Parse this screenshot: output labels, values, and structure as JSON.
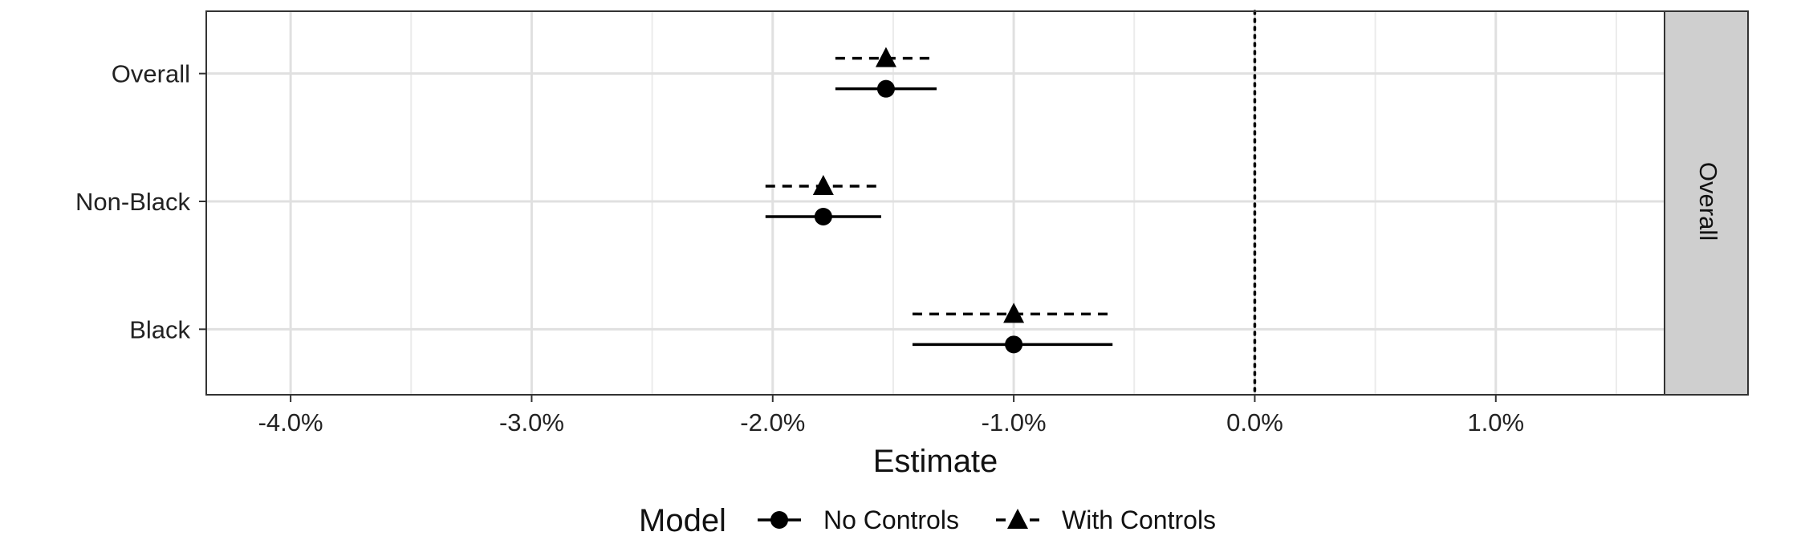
{
  "chart_data": {
    "type": "scatter",
    "title": "",
    "xlabel": "Estimate",
    "ylabel": "",
    "xlim": [
      -4.35,
      1.7
    ],
    "x_ticks": [
      {
        "value": -4.0,
        "label": "-4.0%"
      },
      {
        "value": -3.0,
        "label": "-3.0%"
      },
      {
        "value": -2.0,
        "label": "-2.0%"
      },
      {
        "value": -1.0,
        "label": "-1.0%"
      },
      {
        "value": 0.0,
        "label": "0.0%"
      },
      {
        "value": 1.0,
        "label": "1.0%"
      }
    ],
    "categories": [
      "Overall",
      "Non-Black",
      "Black"
    ],
    "reference_line": 0.0,
    "facet_label": "Overall",
    "grid": true,
    "legend": {
      "title": "Model",
      "position": "bottom",
      "entries": [
        "No Controls",
        "With Controls"
      ]
    },
    "series": [
      {
        "name": "No Controls",
        "marker": "circle",
        "line_style": "solid",
        "points": [
          {
            "category": "Overall",
            "estimate": -1.53,
            "low": -1.74,
            "high": -1.32
          },
          {
            "category": "Non-Black",
            "estimate": -1.79,
            "low": -2.03,
            "high": -1.55
          },
          {
            "category": "Black",
            "estimate": -1.0,
            "low": -1.42,
            "high": -0.59
          }
        ]
      },
      {
        "name": "With Controls",
        "marker": "triangle",
        "line_style": "dashed",
        "points": [
          {
            "category": "Overall",
            "estimate": -1.53,
            "low": -1.74,
            "high": -1.33
          },
          {
            "category": "Non-Black",
            "estimate": -1.79,
            "low": -2.03,
            "high": -1.56
          },
          {
            "category": "Black",
            "estimate": -1.0,
            "low": -1.42,
            "high": -0.6
          }
        ]
      }
    ]
  }
}
